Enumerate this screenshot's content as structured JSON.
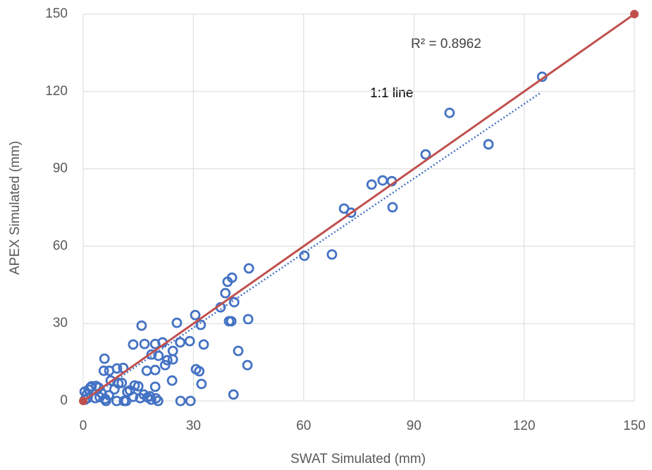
{
  "chart_data": {
    "type": "scatter",
    "x_label": "SWAT Simulated (mm)",
    "y_label": "APEX Simulated (mm)",
    "xlim": [
      0,
      150
    ],
    "ylim": [
      0,
      150
    ],
    "xticks": [
      0,
      30,
      60,
      90,
      120,
      150
    ],
    "yticks": [
      0,
      30,
      60,
      90,
      120,
      150
    ],
    "grid": true,
    "color": "#4472c4",
    "x": [
      124.9,
      99.7,
      110.3,
      93.2,
      81.5,
      84,
      78.5,
      71,
      72.9,
      84.2,
      67.7,
      60.2,
      45.1,
      40.5,
      39.3,
      38.7,
      41.1,
      37.4,
      39.7,
      40.3,
      44.9,
      30.5,
      32,
      25.5,
      15.9,
      32.8,
      42.2,
      44.7,
      29,
      26.4,
      30.7,
      31.6,
      32.2,
      40.9,
      26.5,
      29.2,
      24.2,
      24.4,
      24.4,
      21.6,
      22.3,
      22.9,
      19.6,
      16.7,
      13.6,
      18.6,
      20.5,
      17.3,
      19.6,
      19.6,
      15,
      5.8,
      5.6,
      7.1,
      10.9,
      9.2,
      7.5,
      9.6,
      2.3,
      4.2,
      1.5,
      0.4,
      1.2,
      3.3,
      6.2,
      9.1,
      11.1,
      11.7,
      17.5,
      18.5,
      19.8,
      20.4,
      15.5,
      12.7,
      13.6,
      2,
      3.5,
      5,
      7,
      8.5,
      10.5,
      14,
      16.5,
      18.2,
      1,
      0.5,
      4.5,
      6,
      12
    ],
    "y": [
      125.7,
      111.7,
      99.5,
      95.6,
      85.5,
      85.2,
      83.9,
      74.6,
      73,
      75.1,
      56.8,
      56.3,
      51.4,
      47.8,
      46.2,
      41.8,
      38.3,
      36.3,
      30.9,
      30.9,
      31.7,
      33.3,
      29.5,
      30.3,
      29.2,
      21.9,
      19.4,
      13.9,
      23.2,
      22.7,
      12.3,
      11.5,
      6.6,
      2.5,
      0,
      0,
      7.9,
      16.1,
      19.4,
      22.7,
      13.9,
      15.8,
      22.1,
      22.1,
      21.9,
      18,
      17.5,
      11.7,
      12,
      5.5,
      5.7,
      16.4,
      11.7,
      11.7,
      12.8,
      12.6,
      7.9,
      6.8,
      5.7,
      5.2,
      4.4,
      3.6,
      1.1,
      1.1,
      0,
      0,
      0,
      0,
      1.4,
      0.5,
      1,
      0,
      1.1,
      4.1,
      1.6,
      5.3,
      5.8,
      3,
      2.2,
      4.5,
      7,
      6,
      2.5,
      1.8,
      2.5,
      0.5,
      1.5,
      0.8,
      3.5
    ],
    "reference_line": {
      "label": "1:1 line",
      "x": [
        0,
        150
      ],
      "y": [
        0,
        150
      ],
      "color": "#c0504d"
    },
    "trendline": {
      "label": "R² = 0.8962",
      "x": [
        0,
        124.5
      ],
      "y": [
        -0.5,
        119.5
      ],
      "color": "#4472c4",
      "style": "dotted"
    }
  }
}
